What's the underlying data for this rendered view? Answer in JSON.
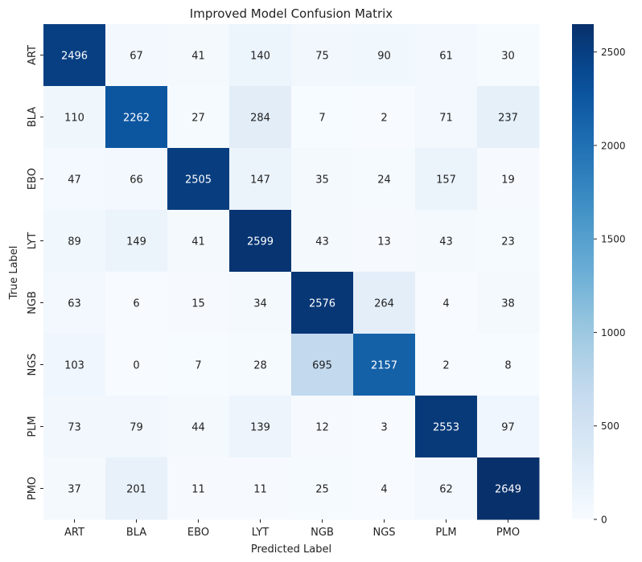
{
  "chart_data": {
    "type": "heatmap",
    "title": "Improved Model Confusion Matrix",
    "xlabel": "Predicted Label",
    "ylabel": "True Label",
    "x_categories": [
      "ART",
      "BLA",
      "EBO",
      "LYT",
      "NGB",
      "NGS",
      "PLM",
      "PMO"
    ],
    "y_categories": [
      "ART",
      "BLA",
      "EBO",
      "LYT",
      "NGB",
      "NGS",
      "PLM",
      "PMO"
    ],
    "values": [
      [
        2496,
        67,
        41,
        140,
        75,
        90,
        61,
        30
      ],
      [
        110,
        2262,
        27,
        284,
        7,
        2,
        71,
        237
      ],
      [
        47,
        66,
        2505,
        147,
        35,
        24,
        157,
        19
      ],
      [
        89,
        149,
        41,
        2599,
        43,
        13,
        43,
        23
      ],
      [
        63,
        6,
        15,
        34,
        2576,
        264,
        4,
        38
      ],
      [
        103,
        0,
        7,
        28,
        695,
        2157,
        2,
        8
      ],
      [
        73,
        79,
        44,
        139,
        12,
        3,
        2553,
        97
      ],
      [
        37,
        201,
        11,
        11,
        25,
        4,
        62,
        2649
      ]
    ],
    "colorbar": {
      "min": 0,
      "max": 2649,
      "ticks": [
        0,
        500,
        1000,
        1500,
        2000,
        2500
      ],
      "colormap": "Blues"
    }
  }
}
